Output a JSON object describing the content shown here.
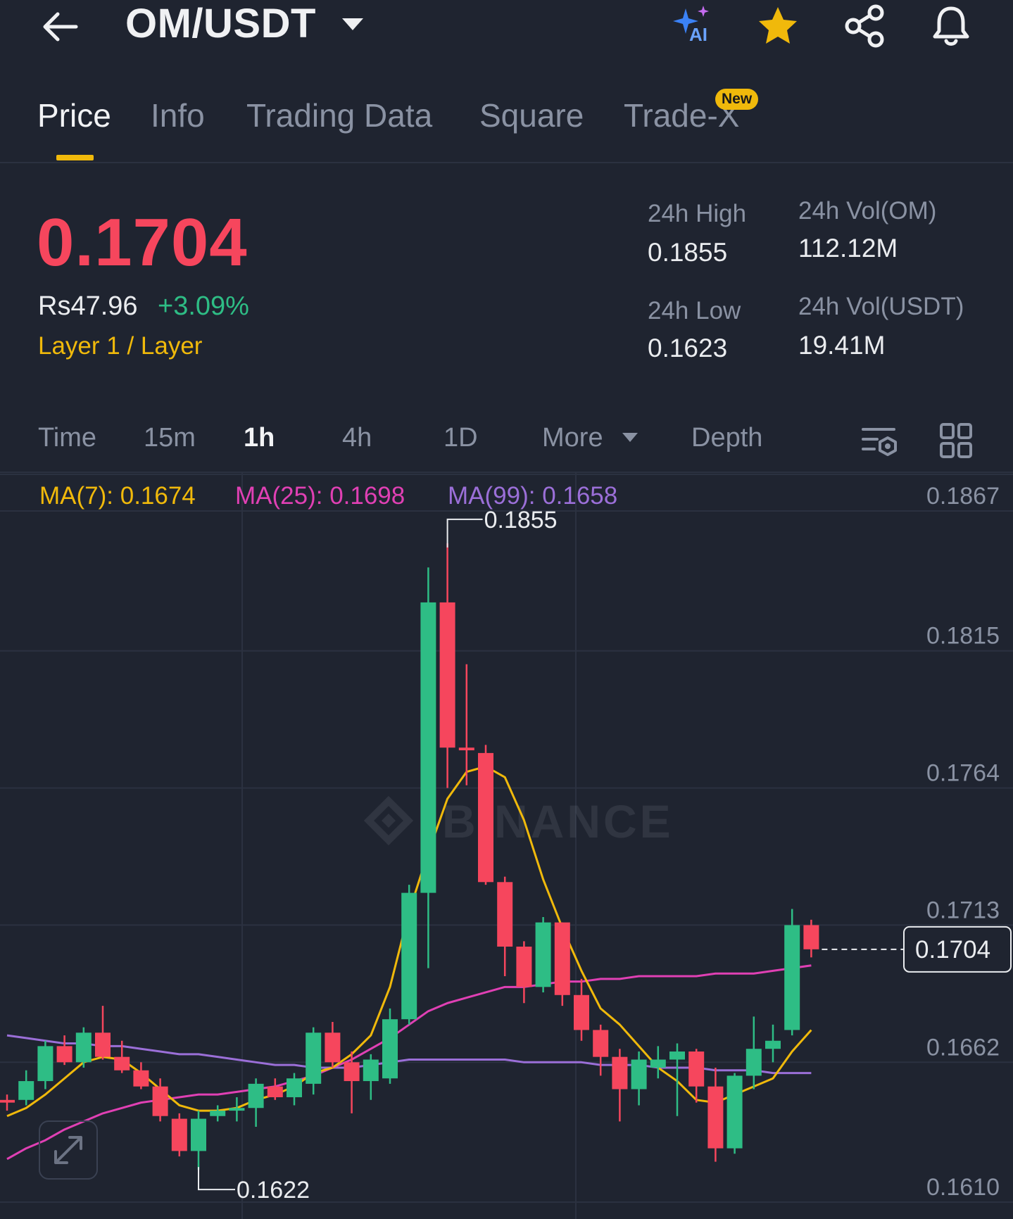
{
  "header": {
    "pair": "OM/USDT",
    "ai_label": "AI"
  },
  "tabs": [
    {
      "label": "Price",
      "active": true
    },
    {
      "label": "Info"
    },
    {
      "label": "Trading Data"
    },
    {
      "label": "Square"
    },
    {
      "label": "Trade-X",
      "badge": "New"
    }
  ],
  "price": {
    "last": "0.1704",
    "fiat": "Rs47.96",
    "change": "+3.09%",
    "tag": "Layer 1 / Layer"
  },
  "stats": {
    "high_label": "24h High",
    "high_value": "0.1855",
    "low_label": "24h Low",
    "low_value": "0.1623",
    "vol_om_label": "24h Vol(OM)",
    "vol_om_value": "112.12M",
    "vol_usdt_label": "24h Vol(USDT)",
    "vol_usdt_value": "19.41M"
  },
  "intervals": {
    "time": "Time",
    "m15": "15m",
    "h1": "1h",
    "h4": "4h",
    "d1": "1D",
    "more": "More",
    "depth": "Depth",
    "active": "1h"
  },
  "ma_legend": {
    "ma7": "MA(7): 0.1674",
    "ma25": "MA(25): 0.1698",
    "ma99": "MA(99): 0.1658"
  },
  "colors": {
    "up": "#2ebd85",
    "down": "#f6465d",
    "ma7": "#f0b90b",
    "ma25": "#e040b4",
    "ma99": "#9b6fd8",
    "accent": "#f0b90b"
  },
  "chart_data": {
    "type": "candlestick",
    "y_ticks": [
      "0.1867",
      "0.1815",
      "0.1764",
      "0.1713",
      "0.1662",
      "0.1610"
    ],
    "ylim": [
      0.161,
      0.1867
    ],
    "high_marker": "0.1855",
    "low_marker": "0.1622",
    "current_price_label": "0.1704",
    "watermark": "BINANCE",
    "candles": [
      {
        "o": 0.1648,
        "h": 0.165,
        "l": 0.1644,
        "c": 0.1647
      },
      {
        "o": 0.1648,
        "h": 0.1659,
        "l": 0.1646,
        "c": 0.1655
      },
      {
        "o": 0.1655,
        "h": 0.167,
        "l": 0.1652,
        "c": 0.1668
      },
      {
        "o": 0.1668,
        "h": 0.1672,
        "l": 0.1661,
        "c": 0.1662
      },
      {
        "o": 0.1662,
        "h": 0.1675,
        "l": 0.166,
        "c": 0.1673
      },
      {
        "o": 0.1673,
        "h": 0.1683,
        "l": 0.1663,
        "c": 0.1664
      },
      {
        "o": 0.1664,
        "h": 0.167,
        "l": 0.1658,
        "c": 0.1659
      },
      {
        "o": 0.1659,
        "h": 0.1662,
        "l": 0.1652,
        "c": 0.1653
      },
      {
        "o": 0.1653,
        "h": 0.1656,
        "l": 0.164,
        "c": 0.1642
      },
      {
        "o": 0.1641,
        "h": 0.1643,
        "l": 0.1627,
        "c": 0.1629
      },
      {
        "o": 0.1629,
        "h": 0.1644,
        "l": 0.1622,
        "c": 0.1641
      },
      {
        "o": 0.1642,
        "h": 0.1646,
        "l": 0.164,
        "c": 0.1644
      },
      {
        "o": 0.1644,
        "h": 0.1649,
        "l": 0.164,
        "c": 0.1645
      },
      {
        "o": 0.1645,
        "h": 0.1656,
        "l": 0.1638,
        "c": 0.1654
      },
      {
        "o": 0.1653,
        "h": 0.1656,
        "l": 0.1648,
        "c": 0.1649
      },
      {
        "o": 0.1649,
        "h": 0.1658,
        "l": 0.1646,
        "c": 0.1656
      },
      {
        "o": 0.1654,
        "h": 0.1675,
        "l": 0.165,
        "c": 0.1673
      },
      {
        "o": 0.1673,
        "h": 0.1677,
        "l": 0.166,
        "c": 0.1662
      },
      {
        "o": 0.1662,
        "h": 0.1666,
        "l": 0.1643,
        "c": 0.1655
      },
      {
        "o": 0.1655,
        "h": 0.1665,
        "l": 0.1648,
        "c": 0.1663
      },
      {
        "o": 0.1656,
        "h": 0.1682,
        "l": 0.1654,
        "c": 0.1678
      },
      {
        "o": 0.1678,
        "h": 0.1728,
        "l": 0.1676,
        "c": 0.1725
      },
      {
        "o": 0.1725,
        "h": 0.1846,
        "l": 0.1697,
        "c": 0.1833
      },
      {
        "o": 0.1833,
        "h": 0.1855,
        "l": 0.1764,
        "c": 0.1779
      },
      {
        "o": 0.1779,
        "h": 0.181,
        "l": 0.1765,
        "c": 0.1778
      },
      {
        "o": 0.1777,
        "h": 0.178,
        "l": 0.1728,
        "c": 0.1729
      },
      {
        "o": 0.1729,
        "h": 0.1731,
        "l": 0.1694,
        "c": 0.1705
      },
      {
        "o": 0.1705,
        "h": 0.1707,
        "l": 0.1684,
        "c": 0.169
      },
      {
        "o": 0.169,
        "h": 0.1716,
        "l": 0.1688,
        "c": 0.1714
      },
      {
        "o": 0.1714,
        "h": 0.1714,
        "l": 0.1683,
        "c": 0.1687
      },
      {
        "o": 0.1687,
        "h": 0.1693,
        "l": 0.167,
        "c": 0.1674
      },
      {
        "o": 0.1674,
        "h": 0.1676,
        "l": 0.1657,
        "c": 0.1664
      },
      {
        "o": 0.1664,
        "h": 0.1667,
        "l": 0.164,
        "c": 0.1652
      },
      {
        "o": 0.1652,
        "h": 0.1666,
        "l": 0.1646,
        "c": 0.1663
      },
      {
        "o": 0.166,
        "h": 0.1668,
        "l": 0.1656,
        "c": 0.1663
      },
      {
        "o": 0.1663,
        "h": 0.1669,
        "l": 0.1642,
        "c": 0.1666
      },
      {
        "o": 0.1666,
        "h": 0.1667,
        "l": 0.1647,
        "c": 0.1653
      },
      {
        "o": 0.1653,
        "h": 0.166,
        "l": 0.1625,
        "c": 0.163
      },
      {
        "o": 0.163,
        "h": 0.1658,
        "l": 0.1628,
        "c": 0.1657
      },
      {
        "o": 0.1657,
        "h": 0.1679,
        "l": 0.1652,
        "c": 0.1667
      },
      {
        "o": 0.1667,
        "h": 0.1676,
        "l": 0.1662,
        "c": 0.167
      },
      {
        "o": 0.1674,
        "h": 0.1719,
        "l": 0.1672,
        "c": 0.1713
      },
      {
        "o": 0.1713,
        "h": 0.1715,
        "l": 0.1701,
        "c": 0.1704
      }
    ],
    "ma7": [
      0.1642,
      0.1645,
      0.165,
      0.1656,
      0.1662,
      0.1664,
      0.1663,
      0.1658,
      0.1652,
      0.1646,
      0.1644,
      0.1644,
      0.1645,
      0.1648,
      0.165,
      0.1653,
      0.1658,
      0.166,
      0.1665,
      0.1672,
      0.169,
      0.1718,
      0.174,
      0.176,
      0.177,
      0.1772,
      0.1768,
      0.1752,
      0.173,
      0.1712,
      0.1696,
      0.1682,
      0.1676,
      0.1668,
      0.166,
      0.1655,
      0.1648,
      0.1647,
      0.165,
      0.1653,
      0.1656,
      0.1666,
      0.1674
    ],
    "ma25": [
      0.1626,
      0.163,
      0.1633,
      0.1637,
      0.164,
      0.1643,
      0.1645,
      0.1647,
      0.1648,
      0.1649,
      0.165,
      0.165,
      0.1651,
      0.1652,
      0.1653,
      0.1655,
      0.1657,
      0.166,
      0.1663,
      0.1667,
      0.1671,
      0.1676,
      0.1681,
      0.1684,
      0.1686,
      0.1688,
      0.169,
      0.169,
      0.1691,
      0.1692,
      0.1692,
      0.1693,
      0.1693,
      0.1694,
      0.1694,
      0.1694,
      0.1694,
      0.1695,
      0.1695,
      0.1695,
      0.1696,
      0.1697,
      0.1698
    ],
    "ma99": [
      0.1672,
      0.1671,
      0.167,
      0.1669,
      0.1669,
      0.1668,
      0.1668,
      0.1667,
      0.1666,
      0.1665,
      0.1665,
      0.1664,
      0.1663,
      0.1662,
      0.1661,
      0.1661,
      0.166,
      0.166,
      0.166,
      0.1661,
      0.1662,
      0.1663,
      0.1663,
      0.1663,
      0.1663,
      0.1663,
      0.1663,
      0.1662,
      0.1662,
      0.1662,
      0.1662,
      0.1661,
      0.1661,
      0.1661,
      0.166,
      0.166,
      0.166,
      0.1659,
      0.1659,
      0.1659,
      0.1658,
      0.1658,
      0.1658
    ]
  }
}
